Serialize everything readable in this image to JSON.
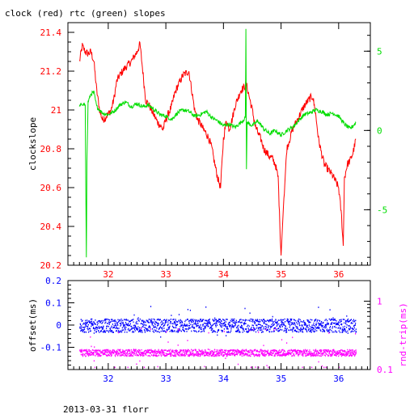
{
  "title": "clock (red) rtc (green) slopes",
  "footer": "2013-03-31 florr",
  "colors": {
    "clock": "#ff0000",
    "rtc": "#00dd00",
    "offset": "#0000ff",
    "rndtrip": "#ff00ff",
    "axis": "#000000"
  },
  "chart_data": [
    {
      "type": "line",
      "title": "clock (red) rtc (green) slopes",
      "ylabel": "clockslope",
      "y2label": "",
      "xlim": [
        31.3,
        36.55
      ],
      "ylim": [
        20.2,
        21.45
      ],
      "y2lim": [
        -8.5,
        6.8
      ],
      "x_ticks": [
        "32",
        "33",
        "34",
        "35",
        "36"
      ],
      "y_ticks": [
        "20.2",
        "20.4",
        "20.6",
        "20.8",
        "21",
        "21.2",
        "21.4"
      ],
      "y2_ticks": [
        "-5",
        "0",
        "5"
      ],
      "grid": false,
      "series": [
        {
          "axis": "left",
          "color": "#ff0000",
          "x": [
            31.5,
            31.55,
            31.6,
            31.65,
            31.7,
            31.75,
            31.8,
            31.85,
            31.9,
            31.95,
            32.0,
            32.05,
            32.1,
            32.15,
            32.2,
            32.3,
            32.4,
            32.5,
            32.55,
            32.6,
            32.65,
            32.7,
            32.75,
            32.8,
            32.85,
            32.9,
            32.95,
            33.0,
            33.1,
            33.15,
            33.2,
            33.3,
            33.4,
            33.45,
            33.5,
            33.55,
            33.6,
            33.65,
            33.7,
            33.75,
            33.8,
            33.85,
            33.9,
            33.95,
            34.0,
            34.05,
            34.1,
            34.15,
            34.2,
            34.3,
            34.4,
            34.5,
            34.55,
            34.6,
            34.65,
            34.7,
            34.75,
            34.8,
            34.85,
            34.9,
            34.95,
            34.98,
            35.0,
            35.05,
            35.1,
            35.2,
            35.3,
            35.4,
            35.5,
            35.55,
            35.6,
            35.65,
            35.7,
            35.75,
            35.8,
            35.85,
            35.9,
            35.95,
            36.0,
            36.05,
            36.08,
            36.1,
            36.15,
            36.2,
            36.25,
            36.3
          ],
          "y": [
            21.25,
            21.33,
            21.3,
            21.29,
            21.3,
            21.25,
            21.1,
            21.0,
            20.95,
            20.96,
            20.98,
            21.0,
            21.06,
            21.15,
            21.18,
            21.22,
            21.25,
            21.3,
            21.34,
            21.2,
            21.05,
            21.03,
            21.0,
            20.97,
            20.94,
            20.92,
            20.9,
            20.95,
            21.02,
            21.08,
            21.12,
            21.18,
            21.2,
            21.1,
            21.0,
            20.95,
            20.93,
            20.9,
            20.88,
            20.85,
            20.8,
            20.72,
            20.65,
            20.6,
            20.85,
            20.95,
            20.9,
            20.95,
            21.02,
            21.1,
            21.13,
            21.0,
            20.92,
            20.88,
            20.85,
            20.8,
            20.78,
            20.76,
            20.75,
            20.72,
            20.65,
            20.4,
            20.25,
            20.55,
            20.8,
            20.9,
            20.96,
            21.02,
            21.06,
            21.07,
            20.98,
            20.85,
            20.78,
            20.72,
            20.7,
            20.68,
            20.66,
            20.63,
            20.6,
            20.45,
            20.3,
            20.65,
            20.72,
            20.74,
            20.78,
            20.85
          ]
        },
        {
          "axis": "right",
          "color": "#00dd00",
          "x": [
            31.5,
            31.55,
            31.6,
            31.62,
            31.63,
            31.65,
            31.7,
            31.75,
            31.8,
            31.9,
            32.0,
            32.1,
            32.2,
            32.3,
            32.4,
            32.5,
            32.6,
            32.7,
            32.8,
            32.9,
            33.0,
            33.1,
            33.2,
            33.3,
            33.4,
            33.5,
            33.6,
            33.7,
            33.8,
            33.9,
            34.0,
            34.1,
            34.2,
            34.3,
            34.38,
            34.39,
            34.4,
            34.41,
            34.5,
            34.6,
            34.7,
            34.8,
            34.9,
            35.0,
            35.1,
            35.2,
            35.3,
            35.4,
            35.5,
            35.6,
            35.7,
            35.8,
            35.9,
            36.0,
            36.1,
            36.2,
            36.3
          ],
          "y": [
            1.5,
            1.7,
            1.6,
            -8.0,
            -2.0,
            1.8,
            2.3,
            2.4,
            1.5,
            1.1,
            1.0,
            1.2,
            1.6,
            1.8,
            1.5,
            1.7,
            1.5,
            1.6,
            1.3,
            1.0,
            0.9,
            0.7,
            1.1,
            1.3,
            1.2,
            0.9,
            1.0,
            1.2,
            0.8,
            0.6,
            0.3,
            0.4,
            0.2,
            0.5,
            0.8,
            6.4,
            -2.5,
            0.5,
            0.3,
            0.6,
            0.1,
            -0.2,
            0.0,
            -0.3,
            0.0,
            0.2,
            0.6,
            1.0,
            1.1,
            1.3,
            1.2,
            1.0,
            1.1,
            0.9,
            0.4,
            0.1,
            0.5
          ]
        }
      ]
    },
    {
      "type": "scatter",
      "ylabel": "offset(ms)",
      "y2label": "rnd-trip(ms)",
      "xlim": [
        31.3,
        36.55
      ],
      "ylim": [
        -0.2,
        0.2
      ],
      "x_ticks": [
        "32",
        "33",
        "34",
        "35",
        "36"
      ],
      "y_ticks": [
        "-0.1",
        "0",
        "0.1",
        "0.2"
      ],
      "y2_ticks": [
        "0.1",
        "1"
      ],
      "y2_scale": "log",
      "y2lim": [
        0.1,
        2.0
      ],
      "grid": false,
      "series": [
        {
          "axis": "left",
          "color": "#0000ff",
          "x_range": [
            31.5,
            36.3
          ],
          "center": 0.0,
          "spread": 0.03
        },
        {
          "axis": "right",
          "color": "#ff00ff",
          "x_range": [
            31.5,
            36.3
          ],
          "center": 0.18,
          "spread": 0.02
        }
      ]
    }
  ]
}
